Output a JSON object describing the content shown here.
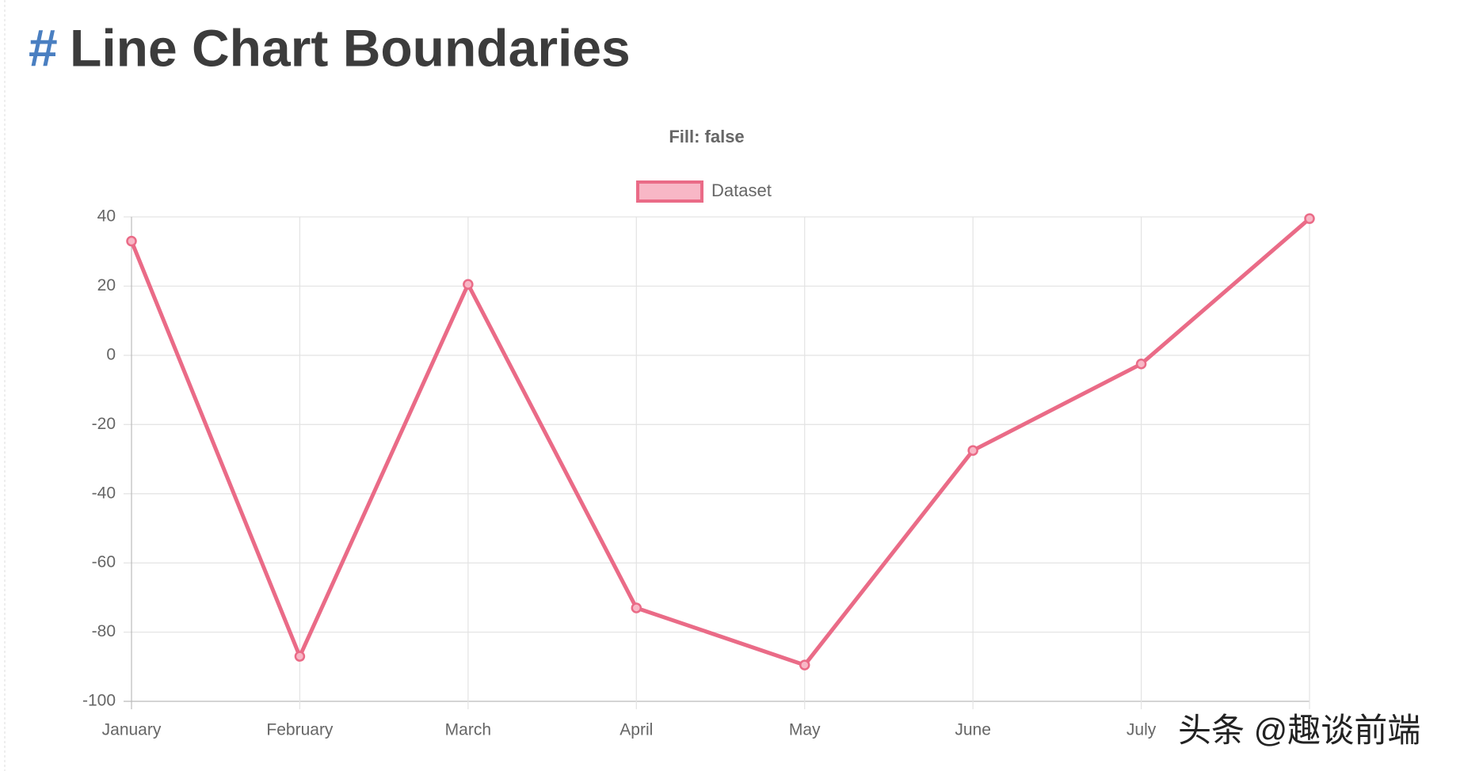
{
  "heading": {
    "hash": "#",
    "title": "Line Chart Boundaries"
  },
  "chart_data": {
    "type": "line",
    "title": "Fill: false",
    "categories": [
      "January",
      "February",
      "March",
      "April",
      "May",
      "June",
      "July",
      null
    ],
    "series": [
      {
        "name": "Dataset",
        "color": "#ea6b87",
        "fill": "#f8b7c6",
        "values": [
          33,
          -87,
          20.5,
          -73,
          -89.5,
          -27.5,
          -2.5,
          39.5
        ]
      }
    ],
    "ylim": [
      -100,
      40
    ],
    "yticks": [
      40,
      20,
      0,
      -20,
      -40,
      -60,
      -80,
      -100
    ],
    "grid": true,
    "legend": "top"
  },
  "watermark": "头条 @趣谈前端"
}
